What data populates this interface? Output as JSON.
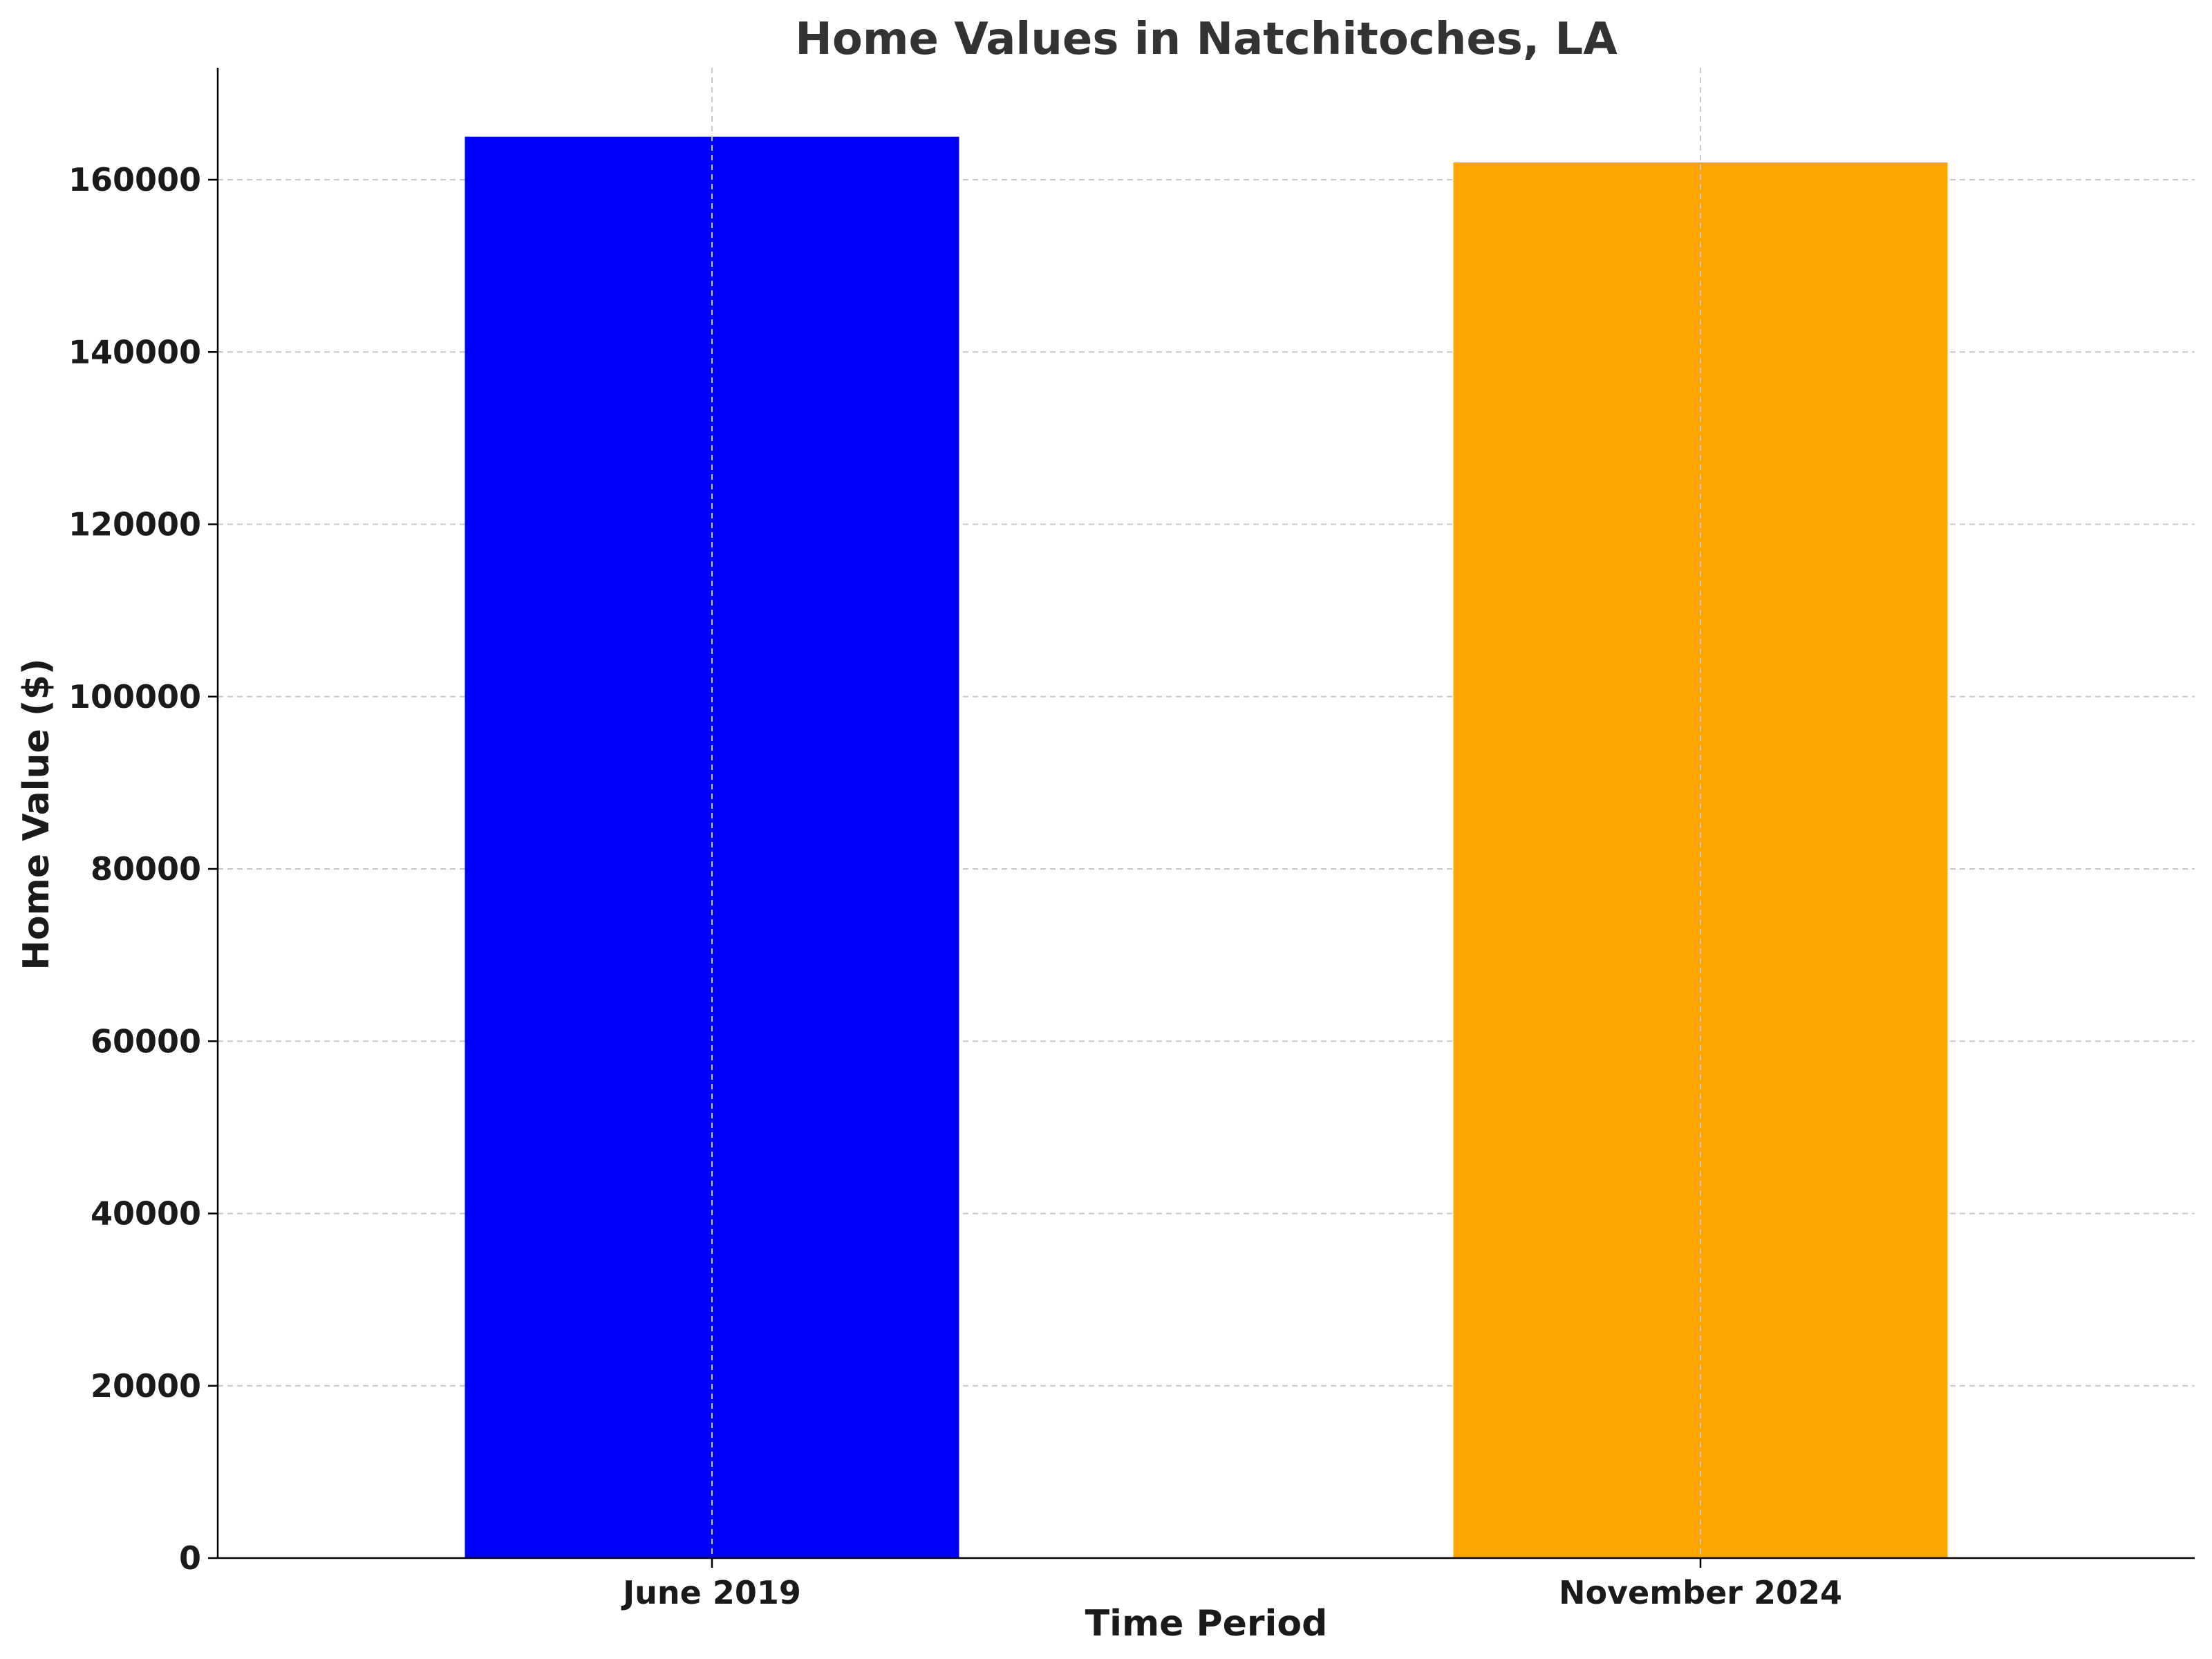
{
  "chart_data": {
    "type": "bar",
    "title": "Home Values in Natchitoches, LA",
    "xlabel": "Time Period",
    "ylabel": "Home Value ($)",
    "categories": [
      "June 2019",
      "November 2024"
    ],
    "values": [
      165000,
      162000
    ],
    "colors": [
      "#0000ff",
      "#ffa500"
    ],
    "ylim": [
      0,
      173000
    ],
    "yticks": [
      0,
      20000,
      40000,
      60000,
      80000,
      100000,
      120000,
      140000,
      160000
    ],
    "grid": true,
    "legend": "none"
  }
}
